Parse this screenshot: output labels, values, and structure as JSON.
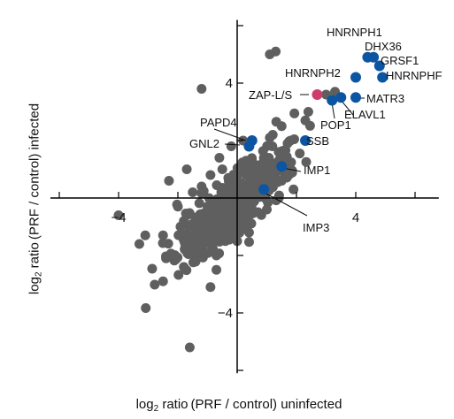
{
  "chart_data": {
    "type": "scatter",
    "xlabel": {
      "prefix": "log",
      "sub": "2",
      "rest": " ratio (PRF / control) uninfected"
    },
    "ylabel": {
      "prefix": "log",
      "sub": "2",
      "rest": " ratio (PRF / control) infected"
    },
    "xlim": [
      -6.3,
      6.8
    ],
    "ylim": [
      -6.1,
      6.2
    ],
    "x_ticks": [
      -4,
      4
    ],
    "y_ticks": [
      -4,
      4
    ],
    "colors": {
      "background_points": "#5f5f5f",
      "highlight": "#0c55a2",
      "zap": "#cf3b6d",
      "axis": "#000000"
    },
    "highlighted": [
      {
        "label": "HNRNPH1",
        "x": 4.4,
        "y": 4.9
      },
      {
        "label": "DHX36",
        "x": 4.6,
        "y": 4.9
      },
      {
        "label": "GRSF1",
        "x": 4.8,
        "y": 4.6
      },
      {
        "label": "HNRNPHF",
        "x": 4.9,
        "y": 4.2
      },
      {
        "label": "HNRNPH2",
        "x": 4.0,
        "y": 4.2
      },
      {
        "label": "ZAP-L/S",
        "x": 2.7,
        "y": 3.6
      },
      {
        "label": "MATR3",
        "x": 4.0,
        "y": 3.5
      },
      {
        "label": "ELAVL1",
        "x": 3.5,
        "y": 3.5
      },
      {
        "label": "POP1",
        "x": 3.2,
        "y": 3.4
      },
      {
        "label": "SSB",
        "x": 2.3,
        "y": 2.0
      },
      {
        "label": "PAPD4",
        "x": 0.5,
        "y": 2.0
      },
      {
        "label": "GNL2",
        "x": 0.4,
        "y": 1.8
      },
      {
        "label": "IMP1",
        "x": 1.5,
        "y": 1.1
      },
      {
        "label": "IMP3",
        "x": 0.9,
        "y": 0.3
      }
    ],
    "other_points": [
      [
        1.3,
        5.1
      ],
      [
        1.1,
        5.0
      ],
      [
        -1.2,
        3.8
      ],
      [
        3.0,
        3.6
      ],
      [
        3.3,
        3.7
      ],
      [
        2.4,
        3.0
      ],
      [
        1.5,
        2.5
      ],
      [
        1.2,
        2.2
      ],
      [
        2.3,
        2.7
      ],
      [
        1.8,
        2.0
      ],
      [
        1.1,
        2.1
      ],
      [
        0.2,
        2.0
      ],
      [
        -0.2,
        1.8
      ],
      [
        1.6,
        1.2
      ],
      [
        0.5,
        1.3
      ],
      [
        1.9,
        0.3
      ],
      [
        1.5,
        0.6
      ],
      [
        1.1,
        0.8
      ],
      [
        0.9,
        1.4
      ],
      [
        -0.5,
        1.0
      ],
      [
        -1.7,
        1.0
      ],
      [
        -2.3,
        0.6
      ],
      [
        -1.2,
        0.4
      ],
      [
        -0.9,
        -0.7
      ],
      [
        -0.4,
        -0.7
      ],
      [
        -2.0,
        -0.3
      ],
      [
        -1.4,
        -1.1
      ],
      [
        -0.2,
        -0.8
      ],
      [
        -2.5,
        -1.3
      ],
      [
        -4.0,
        -0.6
      ],
      [
        -3.1,
        -1.3
      ],
      [
        -3.3,
        -1.6
      ],
      [
        -1.4,
        -1.9
      ],
      [
        -2.4,
        -2.1
      ],
      [
        -1.8,
        -2.4
      ],
      [
        -2.5,
        -2.9
      ],
      [
        -0.7,
        -2.5
      ],
      [
        -0.9,
        -3.1
      ],
      [
        -1.6,
        -5.2
      ],
      [
        0.5,
        -0.1
      ],
      [
        1.0,
        -0.4
      ],
      [
        -0.3,
        0.7
      ],
      [
        0.7,
        0.2
      ],
      [
        1.2,
        0.9
      ],
      [
        -1.0,
        -0.3
      ],
      [
        0.3,
        1.3
      ],
      [
        -0.6,
        1.4
      ],
      [
        1.4,
        1.6
      ],
      [
        -0.4,
        -1.5
      ],
      [
        0.4,
        -1.2
      ],
      [
        -1.3,
        -1.3
      ],
      [
        -0.5,
        0.1
      ],
      [
        0.0,
        0.6
      ],
      [
        0.6,
        0.6
      ],
      [
        -0.9,
        0.8
      ],
      [
        0.2,
        -0.4
      ],
      [
        -0.1,
        -1.0
      ],
      [
        -1.5,
        0.2
      ],
      [
        -1.8,
        -0.8
      ],
      [
        1.7,
        1.9
      ],
      [
        -0.7,
        -2.0
      ],
      [
        -1.1,
        -1.6
      ]
    ]
  }
}
